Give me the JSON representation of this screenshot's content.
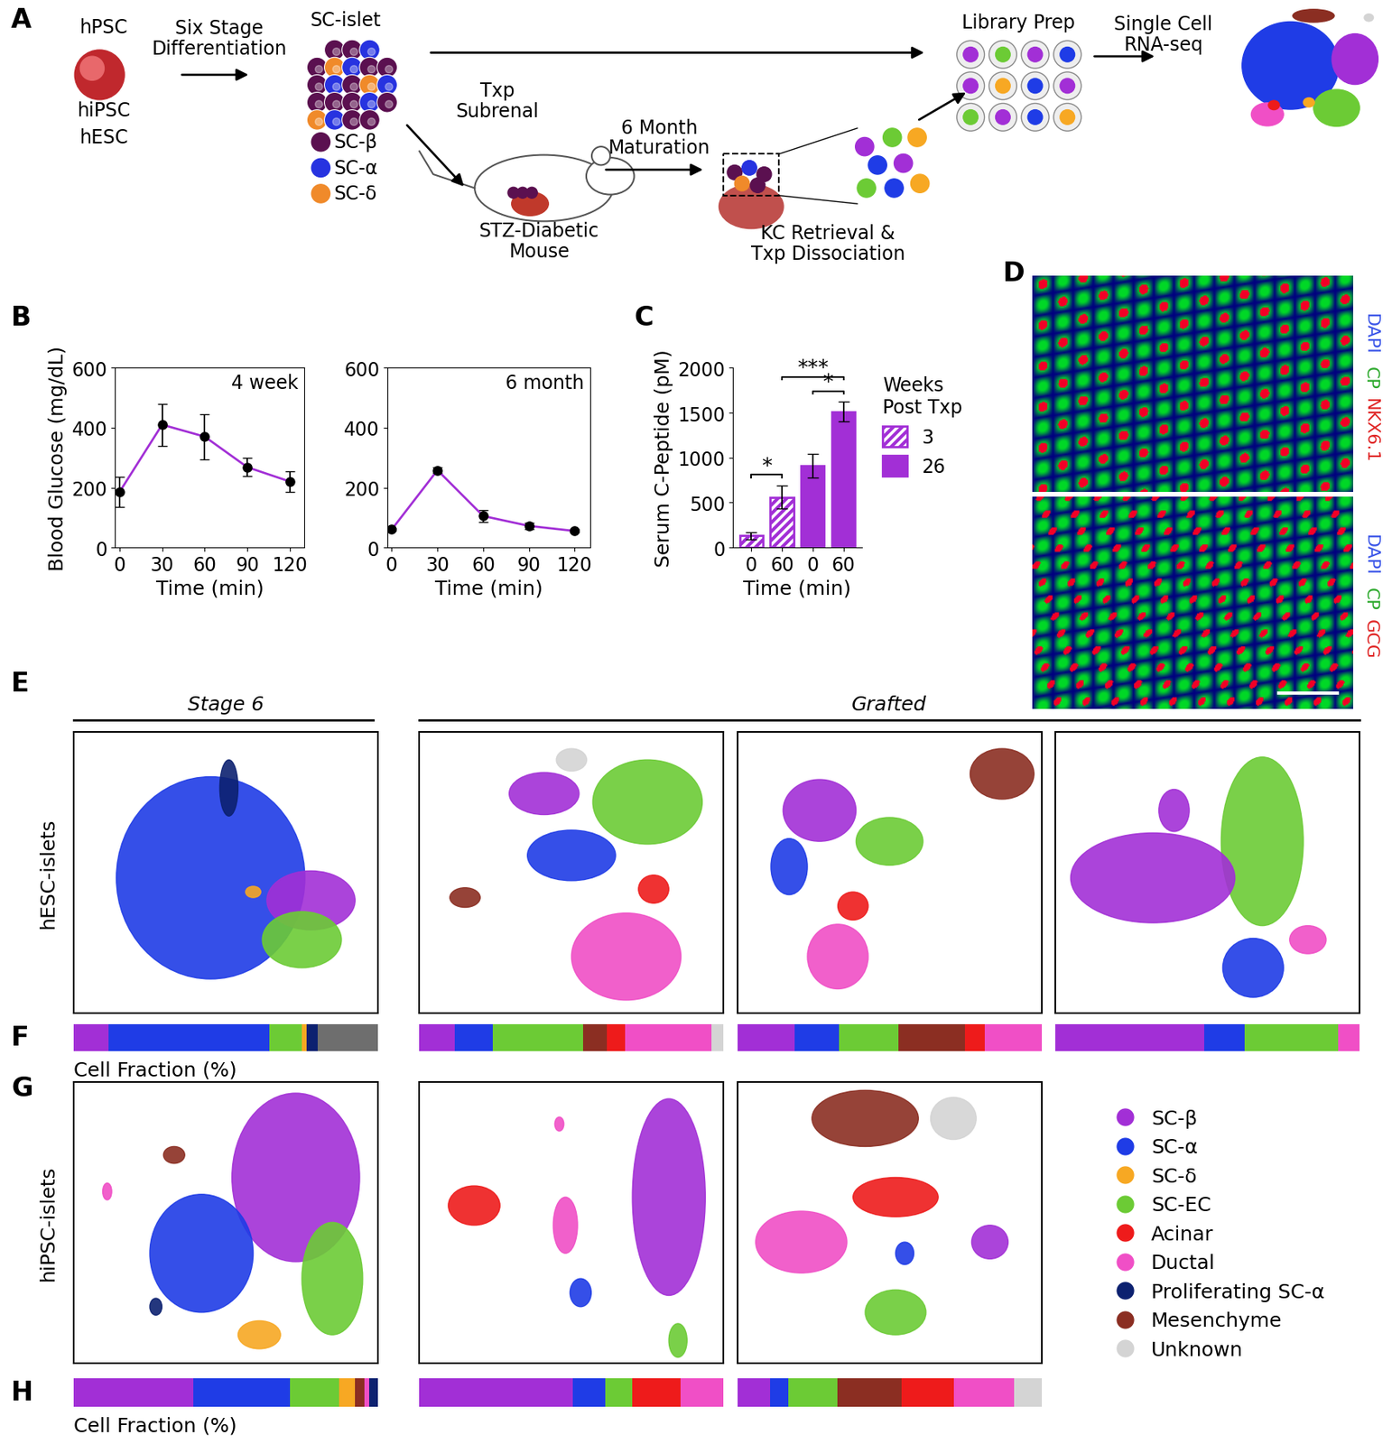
{
  "panel_letters": [
    "A",
    "B",
    "C",
    "D",
    "E",
    "F",
    "G",
    "H"
  ],
  "diagram_A": {
    "hpsc_labels": [
      "hPSC",
      "hiPSC",
      "hESC"
    ],
    "step1": "Six Stage\nDifferentiation",
    "islet_title": "SC-islet",
    "islet_cells": [
      {
        "name": "SC-β",
        "color": "#5B1050"
      },
      {
        "name": "SC-α",
        "color": "#2733E0"
      },
      {
        "name": "SC-δ",
        "color": "#F08A2A"
      }
    ],
    "transplant": "Txp\nSubrenal",
    "mouse": "STZ-Diabetic\nMouse",
    "maturation": "6 Month\nMaturation",
    "retrieval": "KC Retrieval &\nTxp Dissociation",
    "library": "Library Prep",
    "sequencing": "Single Cell\nRNA-seq"
  },
  "chart_data": [
    {
      "type": "line",
      "title": "4 week",
      "x": [
        0,
        30,
        60,
        90,
        120
      ],
      "values": [
        185,
        410,
        370,
        268,
        220
      ],
      "errors": [
        50,
        70,
        75,
        30,
        35
      ],
      "color": "#A22FD6",
      "marker": "o",
      "xlabel": "Time (min)",
      "ylabel": "Blood Glucose (mg/dL)",
      "xlim": [
        -3,
        130
      ],
      "xticks": [
        0,
        30,
        60,
        90,
        120
      ],
      "ylim": [
        0,
        600
      ],
      "yticks": [
        0,
        200,
        400,
        600
      ]
    },
    {
      "type": "line",
      "title": "6 month",
      "x": [
        0,
        30,
        60,
        90,
        120
      ],
      "values": [
        60,
        258,
        105,
        72,
        55
      ],
      "errors": [
        5,
        10,
        20,
        10,
        5
      ],
      "color": "#A22FD6",
      "marker": "o",
      "xlabel": "Time (min)",
      "xlim": [
        -3,
        130
      ],
      "xticks": [
        0,
        30,
        60,
        90,
        120
      ],
      "ylim": [
        0,
        600
      ],
      "yticks": [
        0,
        200,
        400,
        600
      ]
    },
    {
      "type": "bar",
      "categories": [
        "0",
        "60",
        "0",
        "60"
      ],
      "xlabel": "Time (min)",
      "ylabel": "Serum C-Peptide (pM)",
      "ylim": [
        0,
        2000
      ],
      "yticks": [
        0,
        500,
        1000,
        1500,
        2000
      ],
      "legend": "upper left",
      "legend_title": "Weeks\nPost Txp",
      "series": [
        {
          "name": "3",
          "color": "#A22FD6",
          "values": [
            130,
            560,
            null,
            null
          ],
          "errors": [
            40,
            130,
            null,
            null
          ]
        },
        {
          "name": "26",
          "color": "#A22FD6",
          "values": [
            null,
            null,
            910,
            1510
          ],
          "errors": [
            null,
            null,
            130,
            110
          ]
        }
      ],
      "annotations": [
        {
          "from": 0,
          "to": 1,
          "text": "*"
        },
        {
          "from": 1,
          "to": 3,
          "text": "***"
        },
        {
          "from": 2,
          "to": 3,
          "text": "*"
        }
      ]
    }
  ],
  "images_D": [
    {
      "channels": [
        {
          "text": "DAPI",
          "color": "#3A55E8"
        },
        {
          "text": "CP",
          "color": "#2EAA2E"
        },
        {
          "text": "NKX6.1",
          "color": "#E02424"
        }
      ]
    },
    {
      "channels": [
        {
          "text": "DAPI",
          "color": "#3A55E8"
        },
        {
          "text": "CP",
          "color": "#2EAA2E"
        },
        {
          "text": "GCG",
          "color": "#E02424"
        }
      ]
    }
  ],
  "cell_types": [
    {
      "name": "SC-β",
      "color": "#A22FD6"
    },
    {
      "name": "SC-α",
      "color": "#1F3CE6"
    },
    {
      "name": "SC-δ",
      "color": "#F7A823"
    },
    {
      "name": "SC-EC",
      "color": "#6CCB35"
    },
    {
      "name": "Acinar",
      "color": "#EE1B1B"
    },
    {
      "name": "Ductal",
      "color": "#F04FC6"
    },
    {
      "name": "Proliferating SC-α",
      "color": "#0C2170"
    },
    {
      "name": "Mesenchyme",
      "color": "#8B2E22"
    },
    {
      "name": "Unknown",
      "color": "#D4D4D4"
    }
  ],
  "tsne": {
    "row_labels": [
      "hESC-islets",
      "hiPSC-islets"
    ],
    "stage_header": "Stage 6",
    "grafted_header": "Grafted",
    "xlim": [
      0,
      1
    ],
    "ylim": [
      0,
      1
    ],
    "tick_labels": false,
    "rows": [
      [
        {
          "clusters": [
            {
              "cell_type": "SC-α",
              "x": 0.45,
              "y": 0.48,
              "w": 0.62,
              "h": 0.72
            },
            {
              "cell_type": "SC-β",
              "x": 0.78,
              "y": 0.4,
              "w": 0.29,
              "h": 0.21
            },
            {
              "cell_type": "SC-EC",
              "x": 0.75,
              "y": 0.26,
              "w": 0.26,
              "h": 0.2
            },
            {
              "cell_type": "SC-δ",
              "x": 0.59,
              "y": 0.43,
              "w": 0.05,
              "h": 0.04
            },
            {
              "cell_type": "Proliferating SC-α",
              "x": 0.51,
              "y": 0.8,
              "w": 0.06,
              "h": 0.2
            }
          ]
        },
        {
          "clusters": [
            {
              "cell_type": "Unknown",
              "x": 0.5,
              "y": 0.9,
              "w": 0.1,
              "h": 0.08
            },
            {
              "cell_type": "SC-β",
              "x": 0.41,
              "y": 0.78,
              "w": 0.23,
              "h": 0.15
            },
            {
              "cell_type": "SC-EC",
              "x": 0.75,
              "y": 0.75,
              "w": 0.36,
              "h": 0.3
            },
            {
              "cell_type": "SC-α",
              "x": 0.5,
              "y": 0.56,
              "w": 0.29,
              "h": 0.18
            },
            {
              "cell_type": "Acinar",
              "x": 0.77,
              "y": 0.44,
              "w": 0.1,
              "h": 0.1
            },
            {
              "cell_type": "Mesenchyme",
              "x": 0.15,
              "y": 0.41,
              "w": 0.1,
              "h": 0.07
            },
            {
              "cell_type": "Ductal",
              "x": 0.68,
              "y": 0.2,
              "w": 0.36,
              "h": 0.31
            }
          ]
        },
        {
          "clusters": [
            {
              "cell_type": "Mesenchyme",
              "x": 0.87,
              "y": 0.85,
              "w": 0.21,
              "h": 0.18
            },
            {
              "cell_type": "SC-β",
              "x": 0.27,
              "y": 0.72,
              "w": 0.24,
              "h": 0.22
            },
            {
              "cell_type": "SC-EC",
              "x": 0.5,
              "y": 0.61,
              "w": 0.22,
              "h": 0.17
            },
            {
              "cell_type": "SC-α",
              "x": 0.17,
              "y": 0.52,
              "w": 0.12,
              "h": 0.2
            },
            {
              "cell_type": "Acinar",
              "x": 0.38,
              "y": 0.38,
              "w": 0.1,
              "h": 0.1
            },
            {
              "cell_type": "Ductal",
              "x": 0.33,
              "y": 0.2,
              "w": 0.2,
              "h": 0.23
            }
          ]
        },
        {
          "clusters": [
            {
              "cell_type": "SC-EC",
              "x": 0.68,
              "y": 0.61,
              "w": 0.27,
              "h": 0.6
            },
            {
              "cell_type": "SC-β",
              "x": 0.32,
              "y": 0.48,
              "w": 0.54,
              "h": 0.32
            },
            {
              "cell_type": "SC-β",
              "x": 0.39,
              "y": 0.72,
              "w": 0.1,
              "h": 0.15
            },
            {
              "cell_type": "SC-α",
              "x": 0.65,
              "y": 0.16,
              "w": 0.2,
              "h": 0.21
            },
            {
              "cell_type": "Ductal",
              "x": 0.83,
              "y": 0.26,
              "w": 0.12,
              "h": 0.1
            }
          ]
        }
      ],
      [
        {
          "clusters": [
            {
              "cell_type": "SC-β",
              "x": 0.73,
              "y": 0.66,
              "w": 0.42,
              "h": 0.6
            },
            {
              "cell_type": "SC-α",
              "x": 0.42,
              "y": 0.39,
              "w": 0.34,
              "h": 0.42
            },
            {
              "cell_type": "SC-EC",
              "x": 0.85,
              "y": 0.3,
              "w": 0.2,
              "h": 0.4
            },
            {
              "cell_type": "SC-δ",
              "x": 0.61,
              "y": 0.1,
              "w": 0.14,
              "h": 0.1
            },
            {
              "cell_type": "Mesenchyme",
              "x": 0.33,
              "y": 0.74,
              "w": 0.07,
              "h": 0.06
            },
            {
              "cell_type": "Ductal",
              "x": 0.11,
              "y": 0.61,
              "w": 0.03,
              "h": 0.06
            },
            {
              "cell_type": "Proliferating SC-α",
              "x": 0.27,
              "y": 0.2,
              "w": 0.04,
              "h": 0.06
            }
          ]
        },
        {
          "clusters": [
            {
              "cell_type": "SC-β",
              "x": 0.82,
              "y": 0.59,
              "w": 0.24,
              "h": 0.7
            },
            {
              "cell_type": "Acinar",
              "x": 0.18,
              "y": 0.56,
              "w": 0.17,
              "h": 0.14
            },
            {
              "cell_type": "Ductal",
              "x": 0.48,
              "y": 0.49,
              "w": 0.08,
              "h": 0.2
            },
            {
              "cell_type": "Ductal",
              "x": 0.46,
              "y": 0.85,
              "w": 0.03,
              "h": 0.05
            },
            {
              "cell_type": "SC-α",
              "x": 0.53,
              "y": 0.25,
              "w": 0.07,
              "h": 0.1
            },
            {
              "cell_type": "SC-EC",
              "x": 0.85,
              "y": 0.08,
              "w": 0.06,
              "h": 0.12
            }
          ]
        },
        {
          "clusters": [
            {
              "cell_type": "Mesenchyme",
              "x": 0.42,
              "y": 0.87,
              "w": 0.35,
              "h": 0.2
            },
            {
              "cell_type": "Unknown",
              "x": 0.71,
              "y": 0.87,
              "w": 0.15,
              "h": 0.15
            },
            {
              "cell_type": "Acinar",
              "x": 0.52,
              "y": 0.59,
              "w": 0.28,
              "h": 0.14
            },
            {
              "cell_type": "Ductal",
              "x": 0.21,
              "y": 0.43,
              "w": 0.3,
              "h": 0.22
            },
            {
              "cell_type": "SC-α",
              "x": 0.55,
              "y": 0.39,
              "w": 0.06,
              "h": 0.08
            },
            {
              "cell_type": "SC-β",
              "x": 0.83,
              "y": 0.43,
              "w": 0.12,
              "h": 0.12
            },
            {
              "cell_type": "SC-EC",
              "x": 0.52,
              "y": 0.18,
              "w": 0.2,
              "h": 0.16
            }
          ]
        }
      ]
    ]
  },
  "cell_fraction": {
    "type": "bar",
    "orientation": "horizontal",
    "stacked": true,
    "label": "Cell Fraction (%)",
    "xlim": [
      0,
      100
    ],
    "tick_labels": false,
    "rows": [
      [
        {
          "segments": [
            {
              "cell_type": "SC-β",
              "value": 11.5
            },
            {
              "cell_type": "SC-α",
              "value": 52.7
            },
            {
              "cell_type": "SC-EC",
              "value": 10.9
            },
            {
              "cell_type": "SC-δ",
              "value": 1.5
            },
            {
              "cell_type": "Proliferating SC-α",
              "value": 3.6
            },
            {
              "cell_type": null,
              "color": "#6E6E6E",
              "value": 19.8
            }
          ]
        },
        {
          "segments": [
            {
              "cell_type": "SC-β",
              "value": 11.5
            },
            {
              "cell_type": "SC-α",
              "value": 12.7
            },
            {
              "cell_type": "SC-EC",
              "value": 29.7
            },
            {
              "cell_type": "Mesenchyme",
              "value": 7.6
            },
            {
              "cell_type": "Acinar",
              "value": 6.1
            },
            {
              "cell_type": "Ductal",
              "value": 28.5
            },
            {
              "cell_type": "Unknown",
              "value": 3.9
            }
          ]
        },
        {
          "segments": [
            {
              "cell_type": "SC-β",
              "value": 18.8
            },
            {
              "cell_type": "SC-α",
              "value": 14.5
            },
            {
              "cell_type": "SC-EC",
              "value": 19.7
            },
            {
              "cell_type": "Mesenchyme",
              "value": 21.8
            },
            {
              "cell_type": "Acinar",
              "value": 6.4
            },
            {
              "cell_type": "Ductal",
              "value": 18.8
            }
          ]
        },
        {
          "segments": [
            {
              "cell_type": "SC-β",
              "value": 48.9
            },
            {
              "cell_type": "SC-α",
              "value": 13.3
            },
            {
              "cell_type": "SC-EC",
              "value": 30.7
            },
            {
              "cell_type": "Ductal",
              "value": 7.1
            }
          ]
        }
      ],
      [
        {
          "segments": [
            {
              "cell_type": "SC-β",
              "value": 39.4
            },
            {
              "cell_type": "SC-α",
              "value": 31.8
            },
            {
              "cell_type": "SC-EC",
              "value": 16.1
            },
            {
              "cell_type": "SC-δ",
              "value": 5.2
            },
            {
              "cell_type": "Mesenchyme",
              "value": 3.0
            },
            {
              "cell_type": "Ductal",
              "value": 1.5
            },
            {
              "cell_type": "Proliferating SC-α",
              "value": 3.0
            }
          ]
        },
        {
          "segments": [
            {
              "cell_type": "SC-β",
              "value": 50.5
            },
            {
              "cell_type": "SC-α",
              "value": 10.5
            },
            {
              "cell_type": "SC-EC",
              "value": 9.0
            },
            {
              "cell_type": "Acinar",
              "value": 15.9
            },
            {
              "cell_type": "Ductal",
              "value": 14.1
            }
          ]
        },
        {
          "segments": [
            {
              "cell_type": "SC-β",
              "value": 10.7
            },
            {
              "cell_type": "SC-α",
              "value": 6.1
            },
            {
              "cell_type": "SC-EC",
              "value": 16.2
            },
            {
              "cell_type": "Mesenchyme",
              "value": 21.0
            },
            {
              "cell_type": "Acinar",
              "value": 17.1
            },
            {
              "cell_type": "Ductal",
              "value": 19.8
            },
            {
              "cell_type": "Unknown",
              "value": 9.1
            }
          ]
        }
      ]
    ]
  }
}
